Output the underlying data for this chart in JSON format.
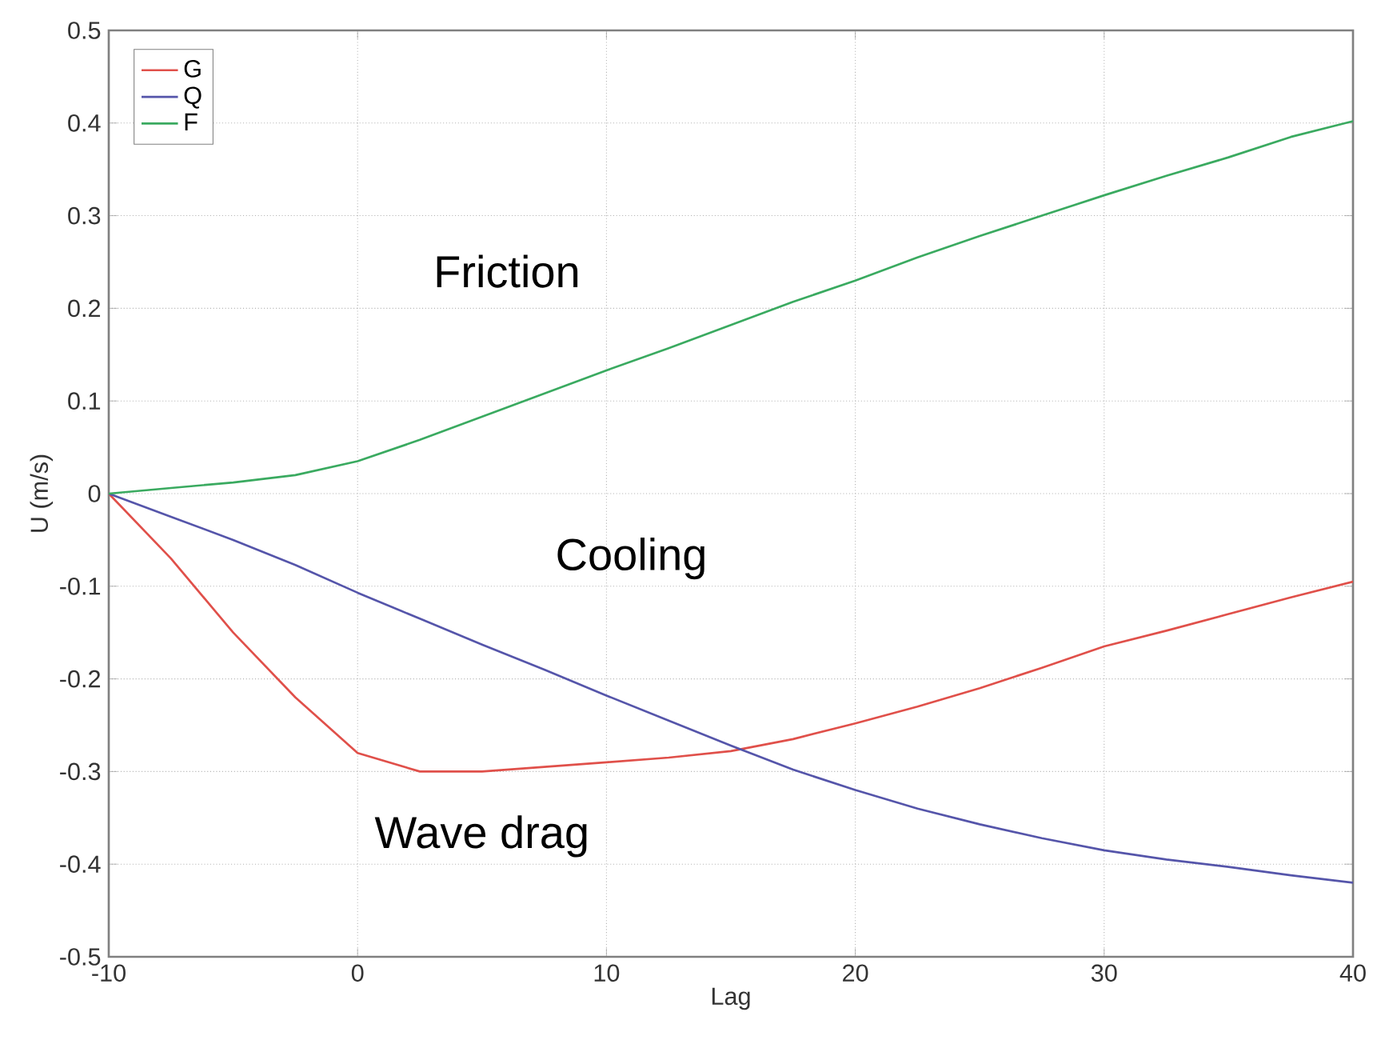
{
  "chart_data": {
    "type": "line",
    "xlabel": "Lag",
    "ylabel": "U (m/s)",
    "xlim": [
      -10,
      40
    ],
    "ylim": [
      -0.5,
      0.5
    ],
    "xticks": [
      -10,
      0,
      10,
      20,
      30,
      40
    ],
    "yticks": [
      -0.5,
      -0.4,
      -0.3,
      -0.2,
      -0.1,
      0,
      0.1,
      0.2,
      0.3,
      0.4,
      0.5
    ],
    "grid": true,
    "legend": "top left",
    "marker": "none",
    "line_style": "solid",
    "x": [
      -10,
      -7.5,
      -5,
      -2.5,
      0,
      2.5,
      5,
      7.5,
      10,
      12.5,
      15,
      17.5,
      20,
      22.5,
      25,
      27.5,
      30,
      32.5,
      35,
      37.5,
      40
    ],
    "series": [
      {
        "name": "G",
        "color": "#e0504a",
        "values": [
          0,
          -0.07,
          -0.15,
          -0.22,
          -0.28,
          -0.3,
          -0.3,
          -0.295,
          -0.29,
          -0.285,
          -0.278,
          -0.265,
          -0.248,
          -0.23,
          -0.21,
          -0.188,
          -0.165,
          -0.148,
          -0.13,
          -0.112,
          -0.095
        ]
      },
      {
        "name": "Q",
        "color": "#5555aa",
        "values": [
          0,
          -0.025,
          -0.05,
          -0.077,
          -0.107,
          -0.135,
          -0.163,
          -0.19,
          -0.218,
          -0.245,
          -0.272,
          -0.298,
          -0.32,
          -0.34,
          -0.357,
          -0.372,
          -0.385,
          -0.395,
          -0.403,
          -0.412,
          -0.42
        ]
      },
      {
        "name": "F",
        "color": "#3aaa60",
        "values": [
          0,
          0.006,
          0.012,
          0.02,
          0.035,
          0.058,
          0.083,
          0.108,
          0.133,
          0.157,
          0.182,
          0.207,
          0.23,
          0.255,
          0.278,
          0.3,
          0.322,
          0.343,
          0.363,
          0.385,
          0.402
        ]
      }
    ],
    "annotations": [
      "Friction",
      "Cooling",
      "Wave drag"
    ]
  }
}
